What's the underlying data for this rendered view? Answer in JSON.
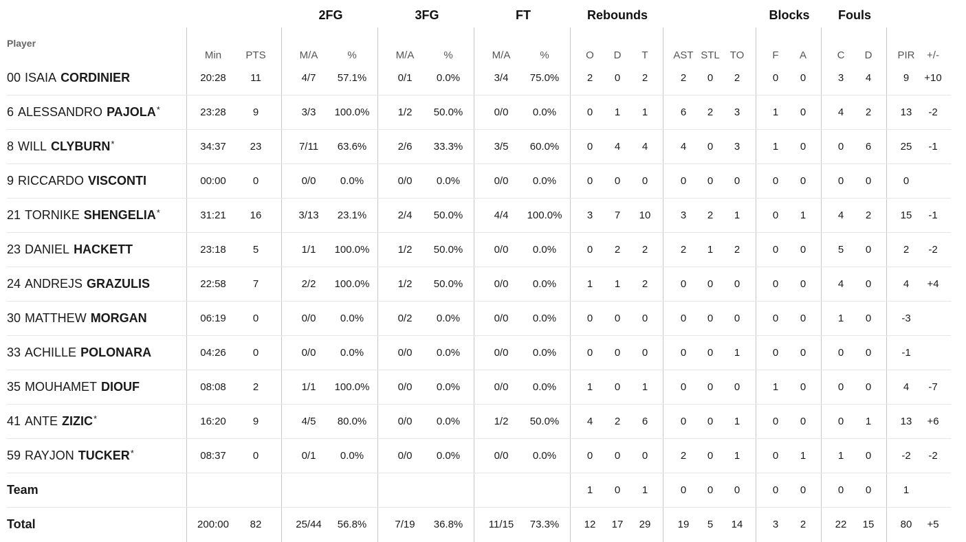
{
  "header": {
    "player_label": "Player",
    "groups": {
      "fg2": "2FG",
      "fg3": "3FG",
      "ft": "FT",
      "rebounds": "Rebounds",
      "blocks": "Blocks",
      "fouls": "Fouls"
    },
    "columns": [
      "Min",
      "PTS",
      "M/A",
      "%",
      "M/A",
      "%",
      "M/A",
      "%",
      "O",
      "D",
      "T",
      "AST",
      "STL",
      "TO",
      "F",
      "A",
      "C",
      "D",
      "PIR",
      "+/-"
    ]
  },
  "players": [
    {
      "num": "00",
      "first": "ISAIA",
      "last": "CORDINIER",
      "star": "",
      "stats": [
        "20:28",
        "11",
        "4/7",
        "57.1%",
        "0/1",
        "0.0%",
        "3/4",
        "75.0%",
        "2",
        "0",
        "2",
        "2",
        "0",
        "2",
        "0",
        "0",
        "3",
        "4",
        "9",
        "+10"
      ]
    },
    {
      "num": "6",
      "first": "ALESSANDRO",
      "last": "PAJOLA",
      "star": "*",
      "stats": [
        "23:28",
        "9",
        "3/3",
        "100.0%",
        "1/2",
        "50.0%",
        "0/0",
        "0.0%",
        "0",
        "1",
        "1",
        "6",
        "2",
        "3",
        "1",
        "0",
        "4",
        "2",
        "13",
        "-2"
      ]
    },
    {
      "num": "8",
      "first": "WILL",
      "last": "CLYBURN",
      "star": "*",
      "stats": [
        "34:37",
        "23",
        "7/11",
        "63.6%",
        "2/6",
        "33.3%",
        "3/5",
        "60.0%",
        "0",
        "4",
        "4",
        "4",
        "0",
        "3",
        "1",
        "0",
        "0",
        "6",
        "25",
        "-1"
      ]
    },
    {
      "num": "9",
      "first": "RICCARDO",
      "last": "VISCONTI",
      "star": "",
      "stats": [
        "00:00",
        "0",
        "0/0",
        "0.0%",
        "0/0",
        "0.0%",
        "0/0",
        "0.0%",
        "0",
        "0",
        "0",
        "0",
        "0",
        "0",
        "0",
        "0",
        "0",
        "0",
        "0",
        ""
      ]
    },
    {
      "num": "21",
      "first": "TORNIKE",
      "last": "SHENGELIA",
      "star": "*",
      "stats": [
        "31:21",
        "16",
        "3/13",
        "23.1%",
        "2/4",
        "50.0%",
        "4/4",
        "100.0%",
        "3",
        "7",
        "10",
        "3",
        "2",
        "1",
        "0",
        "1",
        "4",
        "2",
        "15",
        "-1"
      ]
    },
    {
      "num": "23",
      "first": "DANIEL",
      "last": "HACKETT",
      "star": "",
      "stats": [
        "23:18",
        "5",
        "1/1",
        "100.0%",
        "1/2",
        "50.0%",
        "0/0",
        "0.0%",
        "0",
        "2",
        "2",
        "2",
        "1",
        "2",
        "0",
        "0",
        "5",
        "0",
        "2",
        "-2"
      ]
    },
    {
      "num": "24",
      "first": "ANDREJS",
      "last": "GRAZULIS",
      "star": "",
      "stats": [
        "22:58",
        "7",
        "2/2",
        "100.0%",
        "1/2",
        "50.0%",
        "0/0",
        "0.0%",
        "1",
        "1",
        "2",
        "0",
        "0",
        "0",
        "0",
        "0",
        "4",
        "0",
        "4",
        "+4"
      ]
    },
    {
      "num": "30",
      "first": "MATTHEW",
      "last": "MORGAN",
      "star": "",
      "stats": [
        "06:19",
        "0",
        "0/0",
        "0.0%",
        "0/2",
        "0.0%",
        "0/0",
        "0.0%",
        "0",
        "0",
        "0",
        "0",
        "0",
        "0",
        "0",
        "0",
        "1",
        "0",
        "-3",
        ""
      ]
    },
    {
      "num": "33",
      "first": "ACHILLE",
      "last": "POLONARA",
      "star": "",
      "stats": [
        "04:26",
        "0",
        "0/0",
        "0.0%",
        "0/0",
        "0.0%",
        "0/0",
        "0.0%",
        "0",
        "0",
        "0",
        "0",
        "0",
        "1",
        "0",
        "0",
        "0",
        "0",
        "-1",
        ""
      ]
    },
    {
      "num": "35",
      "first": "MOUHAMET",
      "last": "DIOUF",
      "star": "",
      "stats": [
        "08:08",
        "2",
        "1/1",
        "100.0%",
        "0/0",
        "0.0%",
        "0/0",
        "0.0%",
        "1",
        "0",
        "1",
        "0",
        "0",
        "0",
        "1",
        "0",
        "0",
        "0",
        "4",
        "-7"
      ]
    },
    {
      "num": "41",
      "first": "ANTE",
      "last": "ZIZIC",
      "star": "*",
      "stats": [
        "16:20",
        "9",
        "4/5",
        "80.0%",
        "0/0",
        "0.0%",
        "1/2",
        "50.0%",
        "4",
        "2",
        "6",
        "0",
        "0",
        "1",
        "0",
        "0",
        "0",
        "1",
        "13",
        "+6"
      ]
    },
    {
      "num": "59",
      "first": "RAYJON",
      "last": "TUCKER",
      "star": "*",
      "stats": [
        "08:37",
        "0",
        "0/1",
        "0.0%",
        "0/0",
        "0.0%",
        "0/0",
        "0.0%",
        "0",
        "0",
        "0",
        "2",
        "0",
        "1",
        "0",
        "1",
        "1",
        "0",
        "-2",
        "-2"
      ]
    }
  ],
  "team_row": {
    "label": "Team",
    "stats": [
      "",
      "",
      "",
      "",
      "",
      "",
      "",
      "",
      "1",
      "0",
      "1",
      "0",
      "0",
      "0",
      "0",
      "0",
      "0",
      "0",
      "1",
      ""
    ]
  },
  "total_row": {
    "label": "Total",
    "stats": [
      "200:00",
      "82",
      "25/44",
      "56.8%",
      "7/19",
      "36.8%",
      "11/15",
      "73.3%",
      "12",
      "17",
      "29",
      "19",
      "5",
      "14",
      "3",
      "2",
      "22",
      "15",
      "80",
      "+5"
    ]
  }
}
